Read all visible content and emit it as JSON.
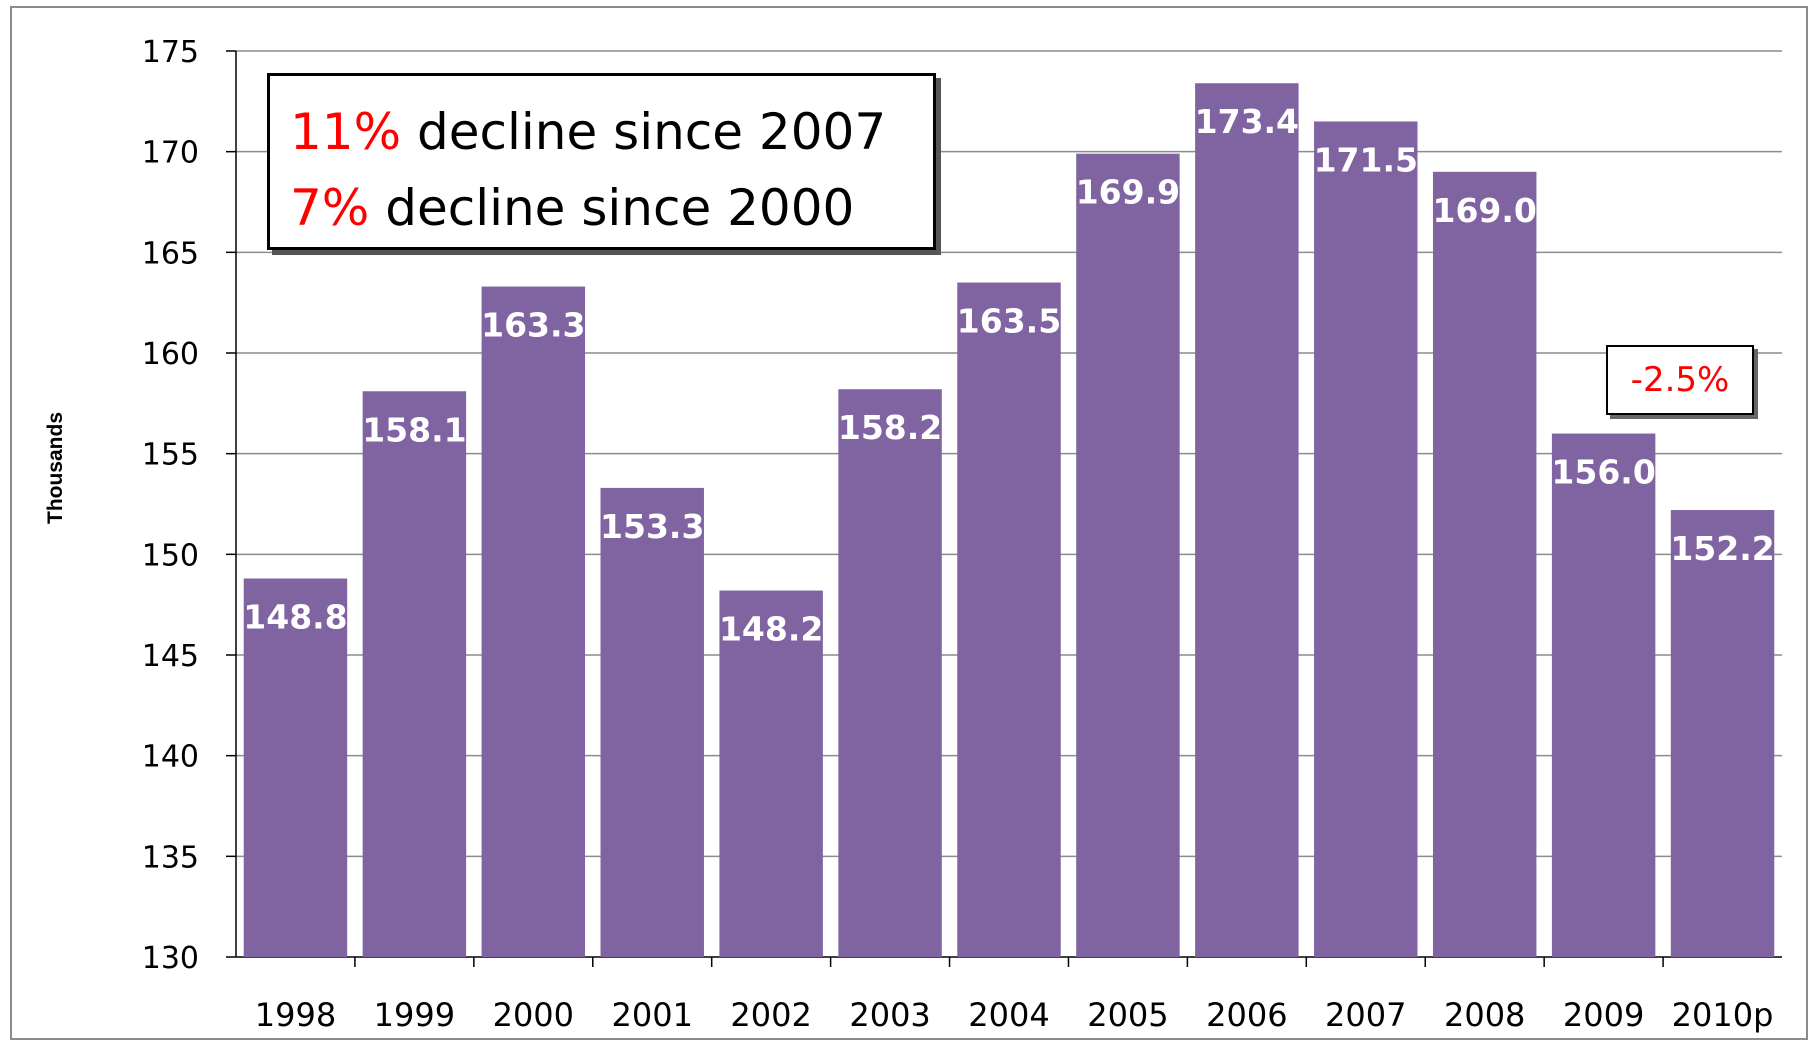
{
  "chart_data": {
    "type": "bar",
    "categories": [
      "1998",
      "1999",
      "2000",
      "2001",
      "2002",
      "2003",
      "2004",
      "2005",
      "2006",
      "2007",
      "2008",
      "2009",
      "2010p"
    ],
    "values": [
      148.8,
      158.1,
      163.3,
      153.3,
      148.2,
      158.2,
      163.5,
      169.9,
      173.4,
      171.5,
      169.0,
      156.0,
      152.2
    ],
    "data_labels": [
      "148.8",
      "158.1",
      "163.3",
      "153.3",
      "148.2",
      "158.2",
      "163.5",
      "169.9",
      "173.4",
      "171.5",
      "169.0",
      "156.0",
      "152.2"
    ],
    "ylabel": "Thousands",
    "ylim": [
      130,
      175
    ],
    "yticks": [
      "130",
      "135",
      "140",
      "145",
      "150",
      "155",
      "160",
      "165",
      "170",
      "175"
    ],
    "grid": true,
    "bar_color": "#8064a2",
    "label_color": "#ffffff"
  },
  "annotations": {
    "main": {
      "line1_pct": "11%",
      "line1_text": " decline since 2007",
      "line2_pct": "7%",
      "line2_text": " decline since 2000",
      "highlight_color": "#ff0000"
    },
    "change": {
      "text": "-2.5%",
      "color": "#ff0000"
    }
  }
}
